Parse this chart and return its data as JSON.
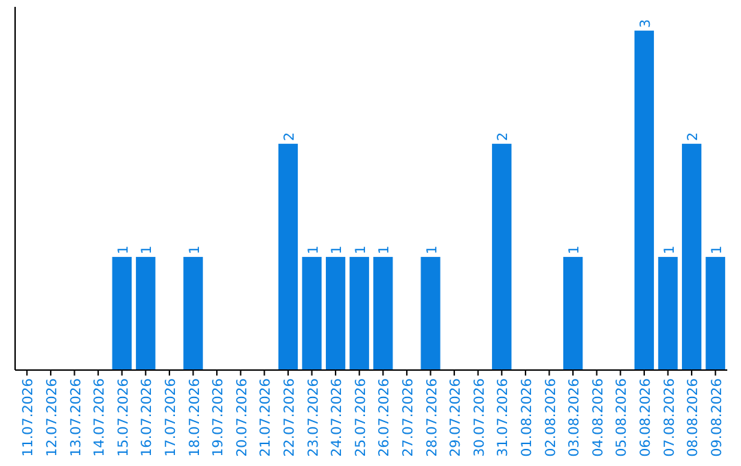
{
  "chart_data": {
    "type": "bar",
    "categories": [
      "11.07.2026",
      "12.07.2026",
      "13.07.2026",
      "14.07.2026",
      "15.07.2026",
      "16.07.2026",
      "17.07.2026",
      "18.07.2026",
      "19.07.2026",
      "20.07.2026",
      "21.07.2026",
      "22.07.2026",
      "23.07.2026",
      "24.07.2026",
      "25.07.2026",
      "26.07.2026",
      "27.07.2026",
      "28.07.2026",
      "29.07.2026",
      "30.07.2026",
      "31.07.2026",
      "01.08.2026",
      "02.08.2026",
      "03.08.2026",
      "04.08.2026",
      "05.08.2026",
      "06.08.2026",
      "07.08.2026",
      "08.08.2026",
      "09.08.2026"
    ],
    "values": [
      0,
      0,
      0,
      0,
      1,
      1,
      0,
      1,
      0,
      0,
      0,
      2,
      1,
      1,
      1,
      1,
      0,
      1,
      0,
      0,
      2,
      0,
      0,
      1,
      0,
      0,
      3,
      1,
      2,
      1
    ],
    "value_labels": [
      null,
      null,
      null,
      null,
      "1",
      "1",
      null,
      "1",
      null,
      null,
      null,
      "2",
      "1",
      "1",
      "1",
      "1",
      null,
      "1",
      null,
      null,
      "2",
      null,
      null,
      "1",
      null,
      null,
      "3",
      "1",
      "2",
      "1"
    ],
    "color": "#0a7fe0"
  }
}
